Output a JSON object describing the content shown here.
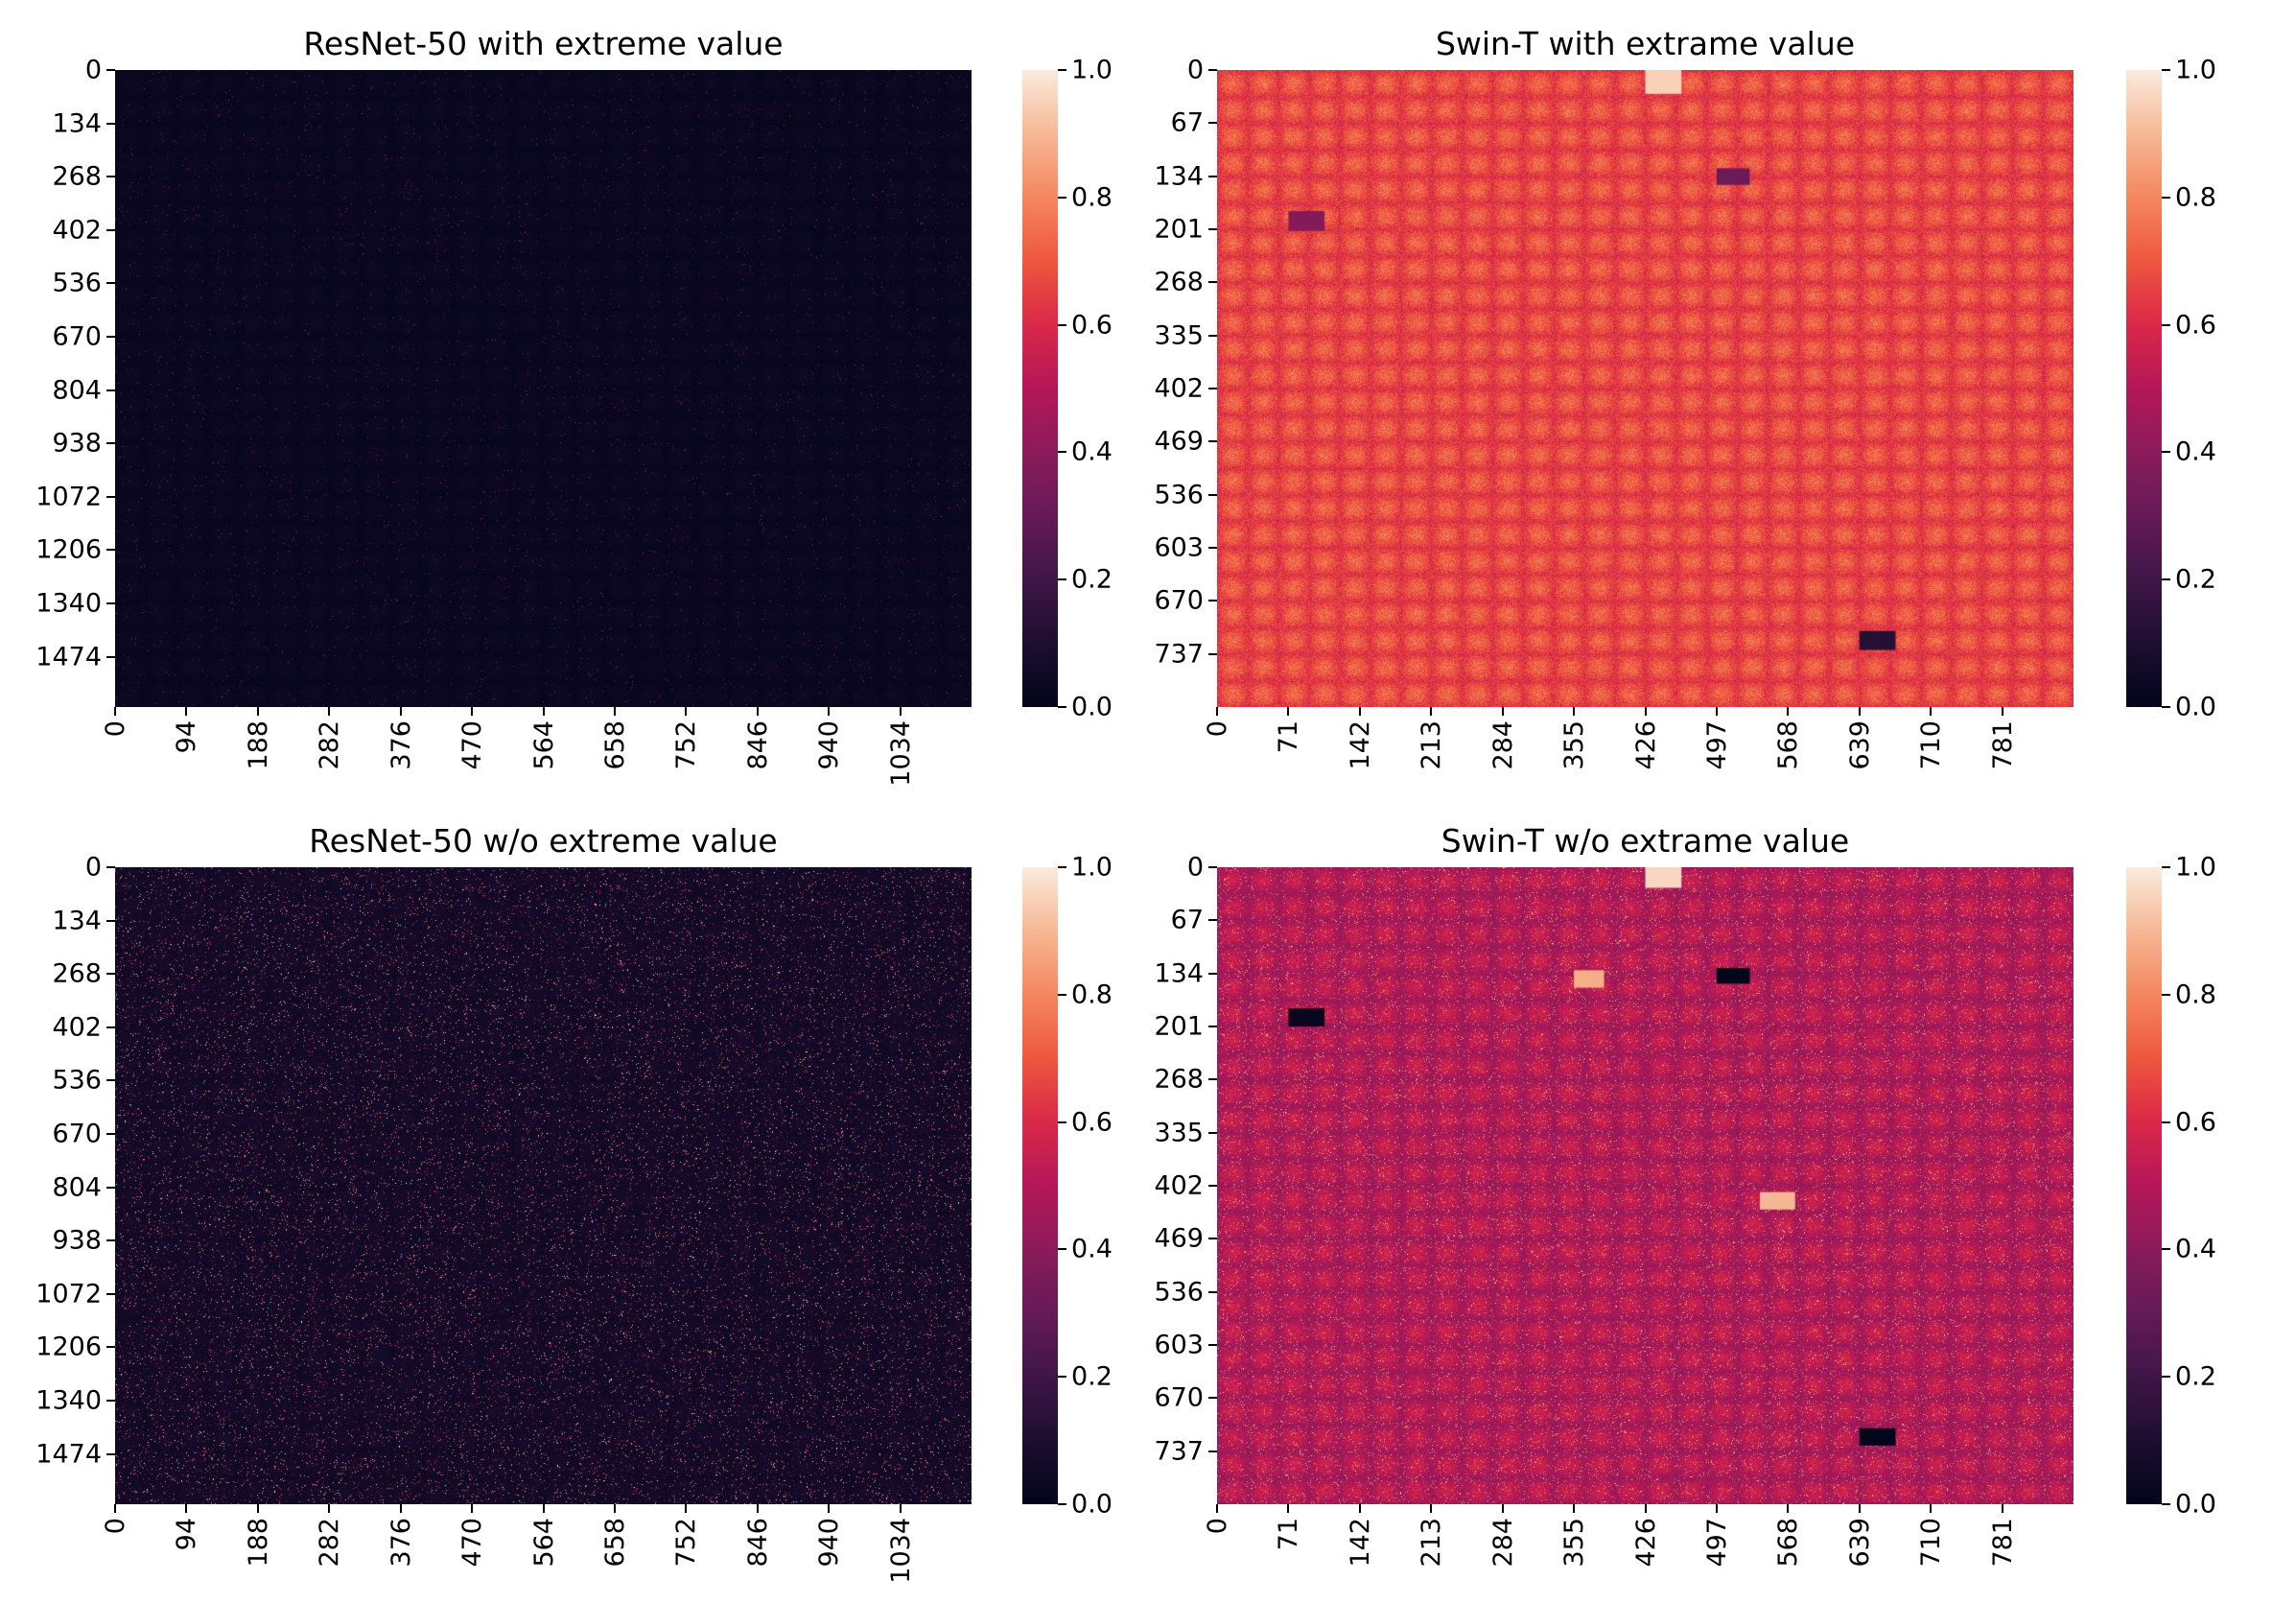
{
  "chart_data": [
    {
      "type": "heatmap",
      "title": "ResNet-50 with extreme value",
      "xlabel": "",
      "ylabel": "",
      "colormap": "rocket",
      "colorbar_range": [
        0.0,
        1.0
      ],
      "colorbar_ticks": [
        "0.0",
        "0.2",
        "0.4",
        "0.6",
        "0.8",
        "1.0"
      ],
      "xlim": [
        0,
        1128
      ],
      "ylim": [
        0,
        1600
      ],
      "xticks": [
        0,
        94,
        188,
        282,
        376,
        470,
        564,
        658,
        752,
        846,
        940,
        1034
      ],
      "yticks": [
        0,
        134,
        268,
        402,
        536,
        670,
        804,
        938,
        1072,
        1206,
        1340,
        1474
      ],
      "description_values": {
        "background_level": 0.03,
        "speckle_density": 0.04,
        "speckle_max": 0.55
      },
      "highlights": []
    },
    {
      "type": "heatmap",
      "title": "Swin-T with extrame value",
      "xlabel": "",
      "ylabel": "",
      "colormap": "rocket",
      "colorbar_range": [
        0.0,
        1.0
      ],
      "colorbar_ticks": [
        "0.0",
        "0.2",
        "0.4",
        "0.6",
        "0.8",
        "1.0"
      ],
      "xlim": [
        0,
        852
      ],
      "ylim": [
        0,
        804
      ],
      "xticks": [
        0,
        71,
        142,
        213,
        284,
        355,
        426,
        497,
        568,
        639,
        710,
        781
      ],
      "yticks": [
        0,
        67,
        134,
        201,
        268,
        335,
        402,
        469,
        536,
        603,
        670,
        737
      ],
      "description_values": {
        "background_level": 0.68,
        "speckle_density": 0.05,
        "speckle_max": 0.78
      },
      "highlights": [
        {
          "x0": 426,
          "x1": 462,
          "y0": 0,
          "y1": 30,
          "value": 0.95
        },
        {
          "x0": 497,
          "x1": 530,
          "y0": 124,
          "y1": 145,
          "value": 0.32
        },
        {
          "x0": 71,
          "x1": 107,
          "y0": 178,
          "y1": 203,
          "value": 0.38
        },
        {
          "x0": 639,
          "x1": 675,
          "y0": 708,
          "y1": 732,
          "value": 0.12
        }
      ]
    },
    {
      "type": "heatmap",
      "title": "ResNet-50 w/o extreme value",
      "xlabel": "",
      "ylabel": "",
      "colormap": "rocket",
      "colorbar_range": [
        0.0,
        1.0
      ],
      "colorbar_ticks": [
        "0.0",
        "0.2",
        "0.4",
        "0.6",
        "0.8",
        "1.0"
      ],
      "xlim": [
        0,
        1128
      ],
      "ylim": [
        0,
        1600
      ],
      "xticks": [
        0,
        94,
        188,
        282,
        376,
        470,
        564,
        658,
        752,
        846,
        940,
        1034
      ],
      "yticks": [
        0,
        134,
        268,
        402,
        536,
        670,
        804,
        938,
        1072,
        1206,
        1340,
        1474
      ],
      "description_values": {
        "background_level": 0.06,
        "speckle_density": 0.22,
        "speckle_max": 1.0
      },
      "highlights": []
    },
    {
      "type": "heatmap",
      "title": "Swin-T w/o extrame value",
      "xlabel": "",
      "ylabel": "",
      "colormap": "rocket",
      "colorbar_range": [
        0.0,
        1.0
      ],
      "colorbar_ticks": [
        "0.0",
        "0.2",
        "0.4",
        "0.6",
        "0.8",
        "1.0"
      ],
      "xlim": [
        0,
        852
      ],
      "ylim": [
        0,
        804
      ],
      "xticks": [
        0,
        71,
        142,
        213,
        284,
        355,
        426,
        497,
        568,
        639,
        710,
        781
      ],
      "yticks": [
        0,
        67,
        134,
        201,
        268,
        335,
        402,
        469,
        536,
        603,
        670,
        737
      ],
      "description_values": {
        "background_level": 0.5,
        "speckle_density": 0.3,
        "speckle_max": 0.95
      },
      "highlights": [
        {
          "x0": 426,
          "x1": 462,
          "y0": 0,
          "y1": 26,
          "value": 0.96
        },
        {
          "x0": 497,
          "x1": 530,
          "y0": 127,
          "y1": 147,
          "value": 0.0
        },
        {
          "x0": 71,
          "x1": 107,
          "y0": 178,
          "y1": 201,
          "value": 0.02
        },
        {
          "x0": 639,
          "x1": 675,
          "y0": 708,
          "y1": 730,
          "value": 0.0
        },
        {
          "x0": 355,
          "x1": 385,
          "y0": 130,
          "y1": 152,
          "value": 0.88
        },
        {
          "x0": 540,
          "x1": 575,
          "y0": 410,
          "y1": 432,
          "value": 0.9
        }
      ]
    }
  ]
}
